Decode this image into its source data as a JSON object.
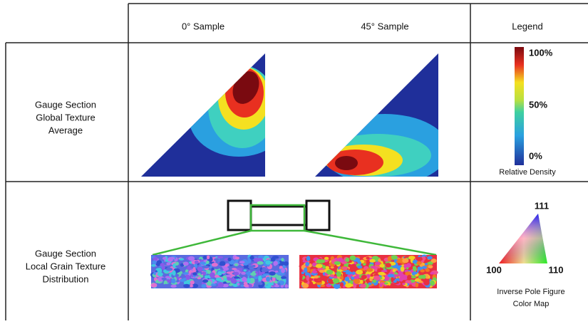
{
  "header": {
    "columns": [
      "0° Sample",
      "45° Sample",
      "Legend"
    ]
  },
  "rows": [
    {
      "label": [
        "Gauge Section",
        "Global Texture",
        "Average"
      ],
      "legend": {
        "ticks": [
          "100%",
          "50%",
          "0%"
        ],
        "caption": "Relative Density"
      }
    },
    {
      "label": [
        "Gauge Section",
        "Local Grain Texture",
        "Distribution"
      ],
      "legend": {
        "corners": [
          "111",
          "100",
          "110"
        ],
        "caption": [
          "Inverse Pole Figure",
          "Color Map"
        ]
      }
    }
  ]
}
